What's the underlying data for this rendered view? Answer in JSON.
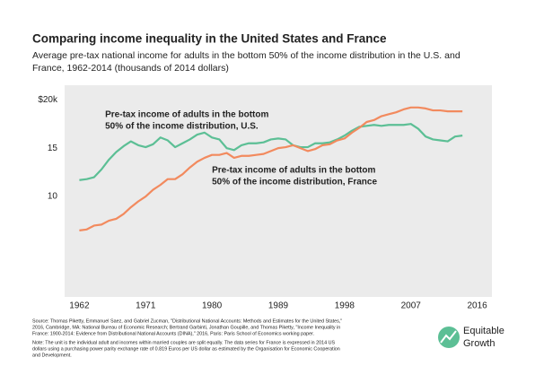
{
  "chart_data": {
    "type": "line",
    "title": "Comparing income inequality in the United States and France",
    "subtitle": [
      "Average pre-tax national income for adults in the bottom 50% of the income distribution in the U.S. and",
      "France, 1962-2014 (thousands of 2014 dollars)"
    ],
    "x": [
      1962,
      1963,
      1964,
      1965,
      1966,
      1967,
      1968,
      1969,
      1970,
      1971,
      1972,
      1973,
      1974,
      1975,
      1976,
      1977,
      1978,
      1979,
      1980,
      1981,
      1982,
      1983,
      1984,
      1985,
      1986,
      1987,
      1988,
      1989,
      1990,
      1991,
      1992,
      1993,
      1994,
      1995,
      1996,
      1997,
      1998,
      1999,
      2000,
      2001,
      2002,
      2003,
      2004,
      2005,
      2006,
      2007,
      2008,
      2009,
      2010,
      2011,
      2012,
      2013,
      2014
    ],
    "series": [
      {
        "name": "U.S.",
        "color": "#5cbf95",
        "values": [
          11.7,
          11.8,
          12.0,
          12.8,
          13.8,
          14.6,
          15.2,
          15.7,
          15.3,
          15.1,
          15.4,
          16.1,
          15.8,
          15.1,
          15.5,
          15.9,
          16.4,
          16.6,
          16.1,
          15.9,
          15.0,
          14.8,
          15.3,
          15.5,
          15.5,
          15.6,
          15.9,
          16.0,
          15.9,
          15.3,
          15.1,
          15.1,
          15.5,
          15.5,
          15.6,
          15.9,
          16.3,
          16.8,
          17.2,
          17.3,
          17.4,
          17.3,
          17.4,
          17.4,
          17.4,
          17.5,
          17.0,
          16.2,
          15.9,
          15.8,
          15.7,
          16.2,
          16.3
        ],
        "annotation": [
          "Pre-tax income of adults in the bottom",
          "50% of the income distribution, U.S."
        ]
      },
      {
        "name": "France",
        "color": "#f28a5e",
        "values": [
          6.5,
          6.6,
          7.0,
          7.1,
          7.5,
          7.7,
          8.2,
          8.9,
          9.5,
          10.0,
          10.7,
          11.2,
          11.8,
          11.8,
          12.3,
          13.0,
          13.6,
          14.0,
          14.3,
          14.3,
          14.5,
          14.0,
          14.2,
          14.2,
          14.3,
          14.4,
          14.7,
          15.0,
          15.1,
          15.3,
          15.0,
          14.7,
          14.9,
          15.3,
          15.4,
          15.8,
          16.0,
          16.6,
          17.1,
          17.7,
          17.9,
          18.3,
          18.5,
          18.7,
          19.0,
          19.2,
          19.2,
          19.1,
          18.9,
          18.9,
          18.8,
          18.8,
          18.8
        ],
        "annotation": [
          "Pre-tax income of adults in the bottom",
          "50% of the income distribution, France"
        ]
      }
    ],
    "xlim": [
      1960,
      2018
    ],
    "xticks": [
      1962,
      1971,
      1980,
      1989,
      1998,
      2007,
      2016
    ],
    "ylim": [
      0,
      21.5
    ],
    "yticks": [
      10,
      15,
      {
        "value": 20,
        "label": "$20k"
      }
    ],
    "grid": false,
    "background": "#ebebeb",
    "source": [
      "Source: Thomas Piketty, Emmanuel Saez, and Gabriel Zucman, \"Distributional National Accounts: Methods and Estimates for the United States,\"",
      "2016, Cambridge, MA: National Bureau of Economic Research; Bertrand Garbinti, Jonathan Goupille, and Thomas Piketty, \"Income Inequality in",
      "France: 1900-2014: Evidence from Distributional National Accounts (DINA),\" 2016, Paris: Paris School of Economics working paper."
    ],
    "note": [
      "Note: The unit is the individual adult and incomes within married couples are split equally. The data series for France is expressed in 2014 US",
      "dollars using a purchasing power parity exchange rate of 0.819 Euros per US dollar as estimated by the Organisation for Economic Cooperation",
      "and Development."
    ],
    "logo": [
      "Equitable",
      "Growth"
    ]
  }
}
